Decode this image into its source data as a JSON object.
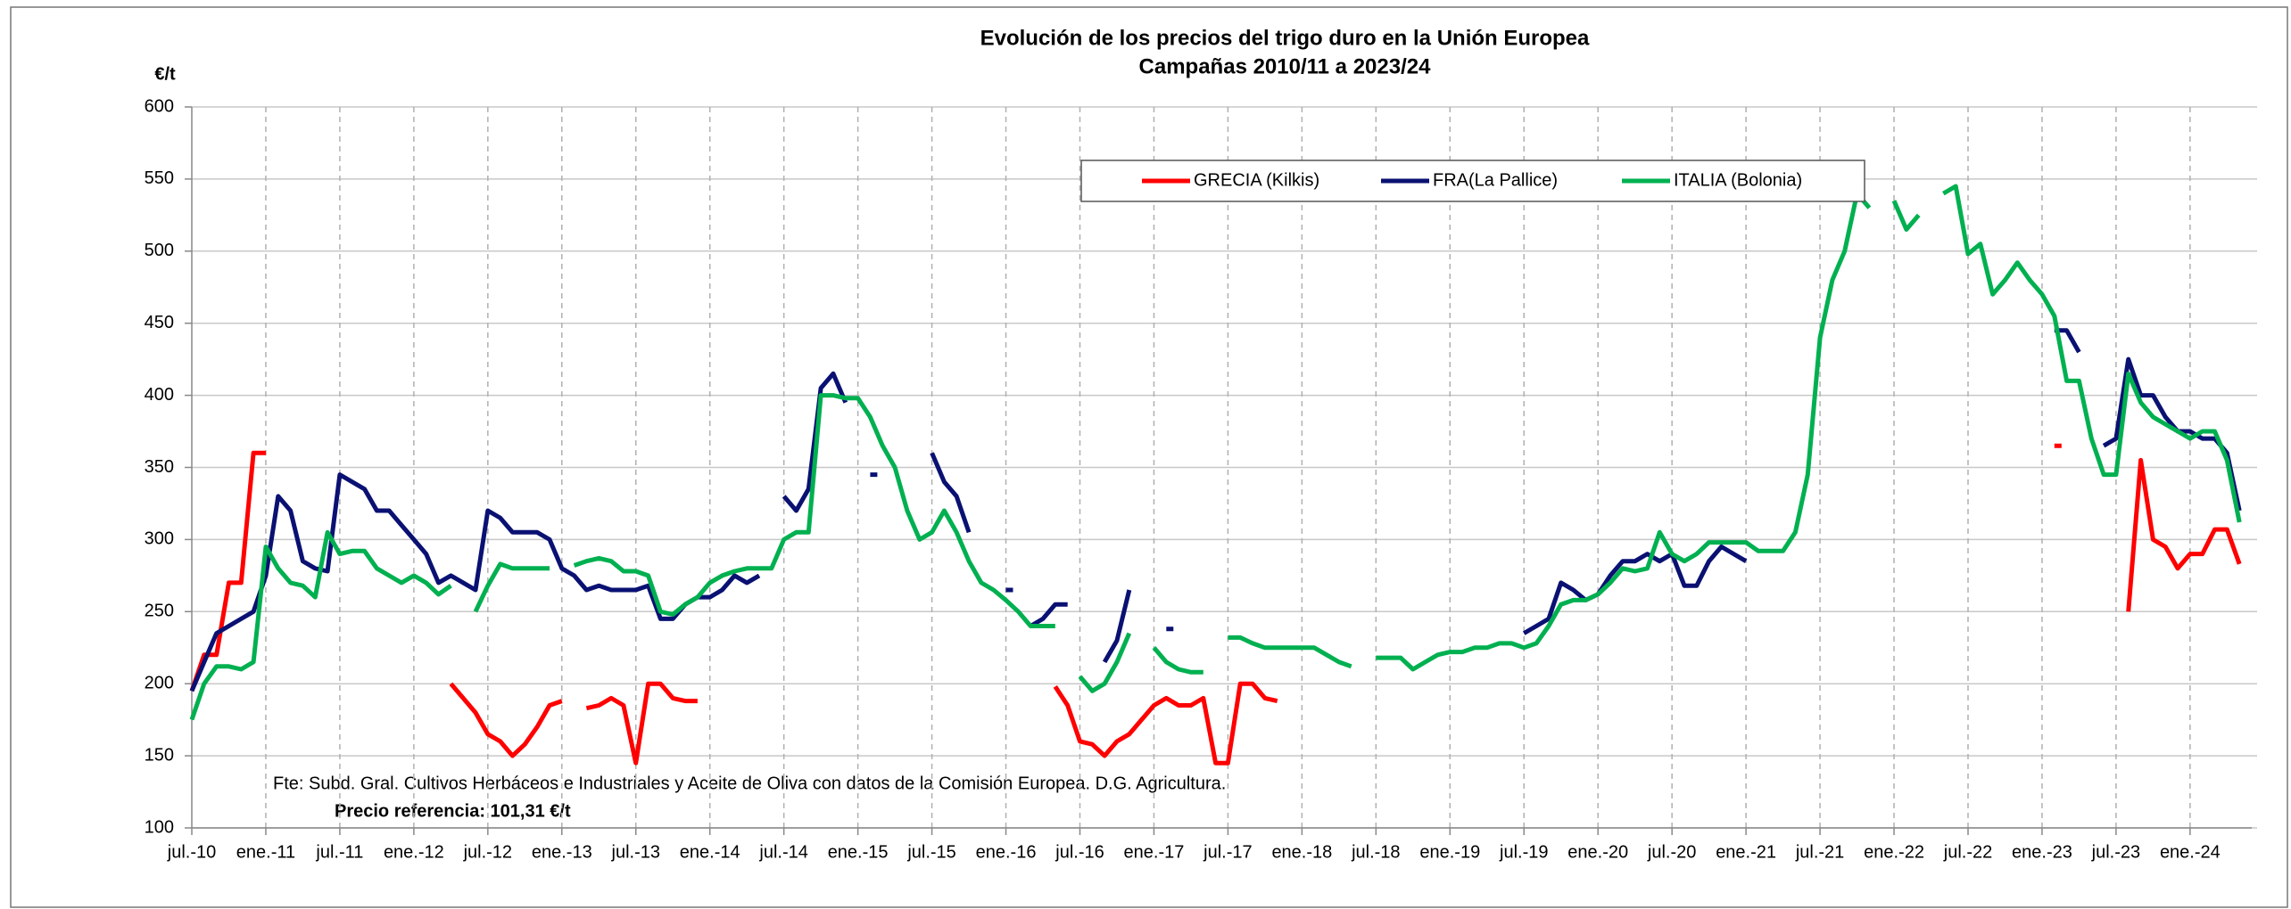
{
  "chart_data": {
    "type": "line",
    "title": "Evolución de los precios del trigo duro en la Unión Europea",
    "subtitle": "Campañas 2010/11 a 2023/24",
    "ylabel": "€/t",
    "annotations": [
      "Fte: Subd. Gral. Cultivos Herbáceos e Industriales y Aceite de Oliva con datos de la Comisión Europea. D.G. Agricultura.",
      "Precio referencia: 101,31 €/t"
    ],
    "ylim": [
      100,
      600
    ],
    "yticks": [
      100,
      150,
      200,
      250,
      300,
      350,
      400,
      450,
      500,
      550,
      600
    ],
    "xlim": [
      "2010-07",
      "2024-06"
    ],
    "xticks": [
      {
        "value": "2010-07",
        "label": "jul.-10"
      },
      {
        "value": "2011-01",
        "label": "ene.-11"
      },
      {
        "value": "2011-07",
        "label": "jul.-11"
      },
      {
        "value": "2012-01",
        "label": "ene.-12"
      },
      {
        "value": "2012-07",
        "label": "jul.-12"
      },
      {
        "value": "2013-01",
        "label": "ene.-13"
      },
      {
        "value": "2013-07",
        "label": "jul.-13"
      },
      {
        "value": "2014-01",
        "label": "ene.-14"
      },
      {
        "value": "2014-07",
        "label": "jul.-14"
      },
      {
        "value": "2015-01",
        "label": "ene.-15"
      },
      {
        "value": "2015-07",
        "label": "jul.-15"
      },
      {
        "value": "2016-01",
        "label": "ene.-16"
      },
      {
        "value": "2016-07",
        "label": "jul.-16"
      },
      {
        "value": "2017-01",
        "label": "ene.-17"
      },
      {
        "value": "2017-07",
        "label": "jul.-17"
      },
      {
        "value": "2018-01",
        "label": "ene.-18"
      },
      {
        "value": "2018-07",
        "label": "jul.-18"
      },
      {
        "value": "2019-01",
        "label": "ene.-19"
      },
      {
        "value": "2019-07",
        "label": "jul.-19"
      },
      {
        "value": "2020-01",
        "label": "ene.-20"
      },
      {
        "value": "2020-07",
        "label": "jul.-20"
      },
      {
        "value": "2021-01",
        "label": "ene.-21"
      },
      {
        "value": "2021-07",
        "label": "jul.-21"
      },
      {
        "value": "2022-01",
        "label": "ene.-22"
      },
      {
        "value": "2022-07",
        "label": "jul.-22"
      },
      {
        "value": "2023-01",
        "label": "ene.-23"
      },
      {
        "value": "2023-07",
        "label": "jul.-23"
      },
      {
        "value": "2024-01",
        "label": "ene.-24"
      }
    ],
    "grid": true,
    "legend": "top",
    "x": [
      "2010-07",
      "2010-08",
      "2010-09",
      "2010-10",
      "2010-11",
      "2010-12",
      "2011-01",
      "2011-02",
      "2011-03",
      "2011-04",
      "2011-05",
      "2011-06",
      "2011-07",
      "2011-08",
      "2011-09",
      "2011-10",
      "2011-11",
      "2011-12",
      "2012-01",
      "2012-02",
      "2012-03",
      "2012-04",
      "2012-05",
      "2012-06",
      "2012-07",
      "2012-08",
      "2012-09",
      "2012-10",
      "2012-11",
      "2012-12",
      "2013-01",
      "2013-02",
      "2013-03",
      "2013-04",
      "2013-05",
      "2013-06",
      "2013-07",
      "2013-08",
      "2013-09",
      "2013-10",
      "2013-11",
      "2013-12",
      "2014-01",
      "2014-02",
      "2014-03",
      "2014-04",
      "2014-05",
      "2014-06",
      "2014-07",
      "2014-08",
      "2014-09",
      "2014-10",
      "2014-11",
      "2014-12",
      "2015-01",
      "2015-02",
      "2015-03",
      "2015-04",
      "2015-05",
      "2015-06",
      "2015-07",
      "2015-08",
      "2015-09",
      "2015-10",
      "2015-11",
      "2015-12",
      "2016-01",
      "2016-02",
      "2016-03",
      "2016-04",
      "2016-05",
      "2016-06",
      "2016-07",
      "2016-08",
      "2016-09",
      "2016-10",
      "2016-11",
      "2016-12",
      "2017-01",
      "2017-02",
      "2017-03",
      "2017-04",
      "2017-05",
      "2017-06",
      "2017-07",
      "2017-08",
      "2017-09",
      "2017-10",
      "2017-11",
      "2017-12",
      "2018-01",
      "2018-02",
      "2018-03",
      "2018-04",
      "2018-05",
      "2018-06",
      "2018-07",
      "2018-08",
      "2018-09",
      "2018-10",
      "2018-11",
      "2018-12",
      "2019-01",
      "2019-02",
      "2019-03",
      "2019-04",
      "2019-05",
      "2019-06",
      "2019-07",
      "2019-08",
      "2019-09",
      "2019-10",
      "2019-11",
      "2019-12",
      "2020-01",
      "2020-02",
      "2020-03",
      "2020-04",
      "2020-05",
      "2020-06",
      "2020-07",
      "2020-08",
      "2020-09",
      "2020-10",
      "2020-11",
      "2020-12",
      "2021-01",
      "2021-02",
      "2021-03",
      "2021-04",
      "2021-05",
      "2021-06",
      "2021-07",
      "2021-08",
      "2021-09",
      "2021-10",
      "2021-11",
      "2021-12",
      "2022-01",
      "2022-02",
      "2022-03",
      "2022-04",
      "2022-05",
      "2022-06",
      "2022-07",
      "2022-08",
      "2022-09",
      "2022-10",
      "2022-11",
      "2022-12",
      "2023-01",
      "2023-02",
      "2023-03",
      "2023-04",
      "2023-05",
      "2023-06",
      "2023-07",
      "2023-08",
      "2023-09",
      "2023-10",
      "2023-11",
      "2023-12",
      "2024-01",
      "2024-02",
      "2024-03",
      "2024-04",
      "2024-05"
    ],
    "series": [
      {
        "name": "GRECIA (Kilkis)",
        "color": "#ff0000",
        "values": [
          195,
          220,
          220,
          270,
          270,
          360,
          360,
          null,
          null,
          null,
          null,
          null,
          null,
          null,
          null,
          null,
          null,
          null,
          null,
          null,
          null,
          200,
          190,
          180,
          165,
          160,
          150,
          158,
          170,
          185,
          188,
          null,
          183,
          185,
          190,
          185,
          145,
          200,
          200,
          190,
          188,
          188,
          null,
          null,
          null,
          null,
          null,
          null,
          null,
          null,
          null,
          null,
          null,
          null,
          null,
          null,
          null,
          null,
          null,
          null,
          null,
          null,
          null,
          null,
          null,
          null,
          null,
          null,
          null,
          null,
          198,
          185,
          160,
          158,
          150,
          160,
          165,
          175,
          185,
          190,
          185,
          185,
          190,
          145,
          145,
          200,
          200,
          190,
          188,
          null,
          null,
          null,
          null,
          null,
          null,
          null,
          null,
          null,
          null,
          null,
          null,
          null,
          null,
          null,
          null,
          null,
          null,
          null,
          null,
          null,
          null,
          null,
          null,
          null,
          null,
          null,
          null,
          null,
          null,
          null,
          null,
          null,
          null,
          null,
          null,
          null,
          null,
          null,
          null,
          null,
          null,
          null,
          null,
          null,
          null,
          null,
          null,
          null,
          null,
          null,
          null,
          null,
          null,
          null,
          null,
          null,
          null,
          null,
          null,
          null,
          null,
          365,
          null,
          null,
          null,
          null,
          null,
          250,
          355,
          300,
          295,
          280,
          290,
          290,
          307,
          307,
          283
        ]
      },
      {
        "name": "FRA(La Pallice)",
        "color": "#0a1172",
        "values": [
          195,
          215,
          235,
          240,
          245,
          250,
          275,
          330,
          320,
          285,
          280,
          278,
          345,
          340,
          335,
          320,
          320,
          310,
          300,
          290,
          270,
          275,
          270,
          265,
          320,
          315,
          305,
          305,
          305,
          300,
          280,
          275,
          265,
          268,
          265,
          265,
          265,
          268,
          245,
          245,
          255,
          260,
          260,
          265,
          275,
          270,
          275,
          null,
          330,
          320,
          335,
          405,
          415,
          395,
          null,
          345,
          null,
          null,
          null,
          null,
          360,
          340,
          330,
          305,
          null,
          null,
          265,
          null,
          240,
          245,
          255,
          255,
          null,
          null,
          215,
          230,
          265,
          null,
          null,
          238,
          null,
          null,
          null,
          null,
          null,
          null,
          null,
          null,
          null,
          null,
          null,
          null,
          null,
          null,
          null,
          null,
          null,
          null,
          null,
          null,
          null,
          null,
          null,
          null,
          null,
          null,
          null,
          null,
          235,
          240,
          245,
          270,
          265,
          258,
          262,
          275,
          285,
          285,
          290,
          285,
          290,
          268,
          268,
          285,
          295,
          290,
          285,
          null,
          null,
          null,
          null,
          null,
          null,
          null,
          null,
          null,
          null,
          null,
          null,
          null,
          null,
          null,
          null,
          null,
          null,
          null,
          null,
          null,
          null,
          null,
          null,
          445,
          445,
          430,
          null,
          365,
          370,
          425,
          400,
          400,
          385,
          375,
          375,
          370,
          370,
          360,
          320
        ]
      },
      {
        "name": "ITALIA (Bolonia)",
        "color": "#00b050",
        "values": [
          175,
          200,
          212,
          212,
          210,
          215,
          295,
          280,
          270,
          268,
          260,
          305,
          290,
          292,
          292,
          280,
          275,
          270,
          275,
          270,
          262,
          268,
          null,
          250,
          268,
          283,
          280,
          280,
          280,
          280,
          null,
          282,
          285,
          287,
          285,
          278,
          278,
          275,
          250,
          248,
          255,
          260,
          270,
          275,
          278,
          280,
          280,
          280,
          300,
          305,
          305,
          400,
          400,
          398,
          398,
          385,
          365,
          350,
          320,
          300,
          305,
          320,
          305,
          285,
          270,
          265,
          258,
          250,
          240,
          240,
          240,
          null,
          205,
          195,
          200,
          215,
          235,
          null,
          225,
          215,
          210,
          208,
          208,
          null,
          232,
          232,
          228,
          225,
          225,
          225,
          225,
          225,
          220,
          215,
          212,
          null,
          218,
          218,
          218,
          210,
          215,
          220,
          222,
          222,
          225,
          225,
          228,
          228,
          225,
          228,
          240,
          255,
          258,
          258,
          262,
          270,
          280,
          278,
          280,
          305,
          290,
          285,
          290,
          298,
          298,
          298,
          298,
          292,
          292,
          292,
          305,
          345,
          440,
          480,
          500,
          540,
          530,
          null,
          535,
          515,
          525,
          null,
          540,
          545,
          498,
          505,
          470,
          480,
          492,
          480,
          470,
          455,
          410,
          410,
          370,
          345,
          345,
          415,
          395,
          385,
          380,
          375,
          370,
          375,
          375,
          355,
          312
        ]
      }
    ]
  }
}
